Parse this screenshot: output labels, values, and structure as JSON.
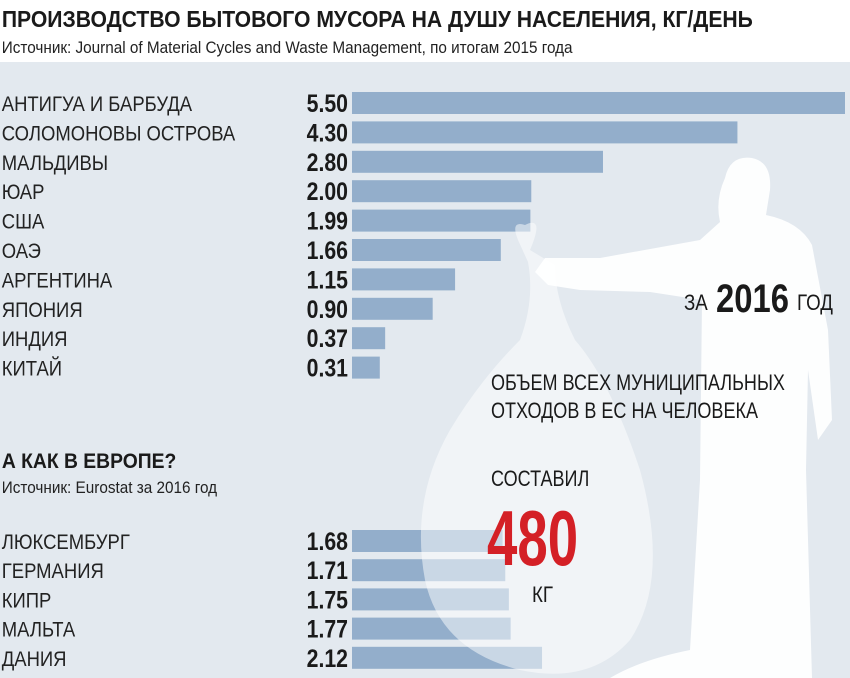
{
  "chart_data": [
    {
      "type": "bar",
      "orientation": "horizontal",
      "title": "ПРОИЗВОДСТВО БЫТОВОГО МУСОРА НА ДУШУ НАСЕЛЕНИЯ, КГ/ДЕНЬ",
      "subtitle": "Источник: Journal of Material Cycles and Waste Management, по итогам 2015 года",
      "categories": [
        "АНТИГУА И БАРБУДА",
        "СОЛОМОНОВЫ ОСТРОВА",
        "МАЛЬДИВЫ",
        "ЮАР",
        "США",
        "ОАЭ",
        "АРГЕНТИНА",
        "ЯПОНИЯ",
        "ИНДИЯ",
        "КИТАЙ"
      ],
      "values": [
        5.5,
        4.3,
        2.8,
        2.0,
        1.99,
        1.66,
        1.15,
        0.9,
        0.37,
        0.31
      ],
      "labels": [
        "5.50",
        "4.30",
        "2.80",
        "2.00",
        "1.99",
        "1.66",
        "1.15",
        "0.90",
        "0.37",
        "0.31"
      ],
      "xlim": [
        0,
        5.5
      ],
      "grid": false
    },
    {
      "type": "bar",
      "orientation": "horizontal",
      "title": "А КАК В ЕВРОПЕ?",
      "subtitle": "Источник: Eurostat за 2016 год",
      "categories": [
        "ЛЮКСЕМБУРГ",
        "ГЕРМАНИЯ",
        "КИПР",
        "МАЛЬТА",
        "ДАНИЯ"
      ],
      "values": [
        1.68,
        1.71,
        1.75,
        1.77,
        2.12
      ],
      "labels": [
        "1.68",
        "1.71",
        "1.75",
        "1.77",
        "2.12"
      ],
      "xlim": [
        0,
        5.5
      ],
      "grid": false
    }
  ],
  "callout": {
    "year_prefix": "ЗА",
    "year": "2016",
    "year_suffix": "ГОД",
    "line1": "ОБЪЕМ ВСЕХ  МУНИЦИПАЛЬНЫХ",
    "line2": "ОТХОДОВ В ЕС НА ЧЕЛОВЕКА",
    "line3": "СОСТАВИЛ",
    "value": "480",
    "unit": "КГ"
  },
  "colors": {
    "bar": "#93aecb",
    "background": "#e3e9ef",
    "accent": "#d42026"
  }
}
